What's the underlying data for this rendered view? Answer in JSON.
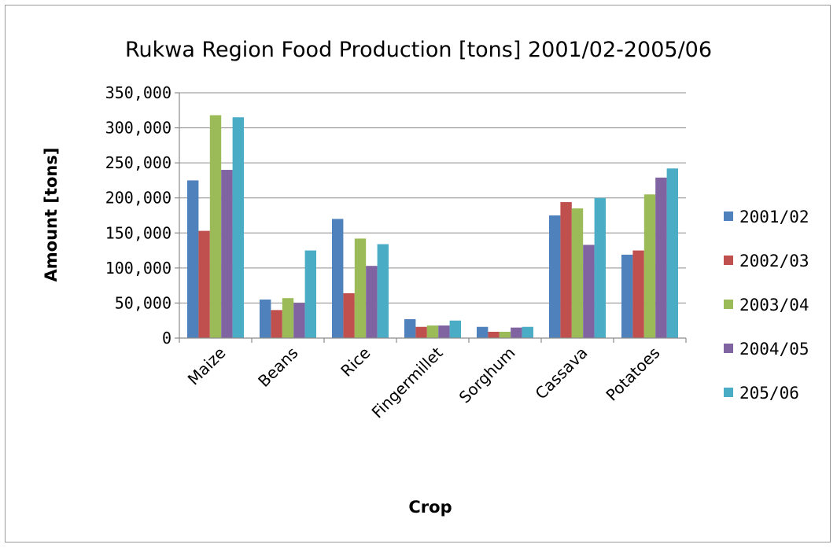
{
  "chart_data": {
    "type": "bar",
    "title": "Rukwa Region Food Production [tons] 2001/02-2005/06",
    "xlabel": "Crop",
    "ylabel": "Amount [tons]",
    "ylim": [
      0,
      350000
    ],
    "yticks": [
      0,
      50000,
      100000,
      150000,
      200000,
      250000,
      300000,
      350000
    ],
    "ytick_labels": [
      "0",
      "50,000",
      "100,000",
      "150,000",
      "200,000",
      "250,000",
      "300,000",
      "350,000"
    ],
    "grid": true,
    "legend_position": "right",
    "categories": [
      "Maize",
      "Beans",
      "Rice",
      "Fingermillet",
      "Sorghum",
      "Cassava",
      "Potatoes"
    ],
    "series": [
      {
        "name": "2001/02",
        "color": "#4f81bd",
        "values": [
          225000,
          55000,
          170000,
          27000,
          16000,
          175000,
          119000
        ]
      },
      {
        "name": "2002/03",
        "color": "#c0504d",
        "values": [
          153000,
          40000,
          64000,
          16000,
          9000,
          194000,
          125000
        ]
      },
      {
        "name": "2003/04",
        "color": "#9bbb59",
        "values": [
          318000,
          57000,
          142000,
          18000,
          9000,
          185000,
          205000
        ]
      },
      {
        "name": "2004/05",
        "color": "#8064a2",
        "values": [
          240000,
          50000,
          103000,
          18000,
          15000,
          133000,
          229000
        ]
      },
      {
        "name": "205/06",
        "color": "#4bacc6",
        "values": [
          315000,
          125000,
          134000,
          25000,
          16000,
          200000,
          242000
        ]
      }
    ]
  }
}
